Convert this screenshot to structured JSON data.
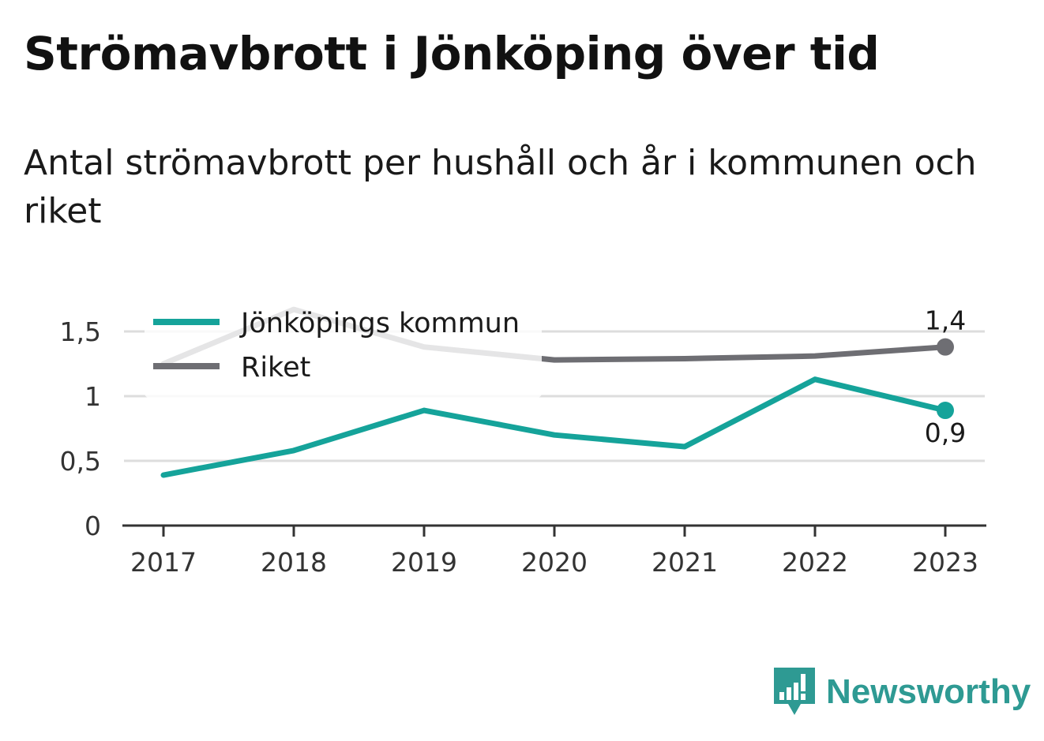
{
  "title": "Strömavbrott i Jönköping över tid",
  "subtitle": "Antal strömavbrott per hushåll och år i kommunen och riket",
  "brand": {
    "name": "Newsworthy",
    "color": "#2e9a93",
    "icon": "newsworthy-chart-bubble-icon"
  },
  "chart_data": {
    "type": "line",
    "x": [
      "2017",
      "2018",
      "2019",
      "2020",
      "2021",
      "2022",
      "2023"
    ],
    "ylim": [
      0,
      1.7
    ],
    "yticks": [
      0,
      0.5,
      1,
      1.5
    ],
    "ytick_labels": [
      "0",
      "0,5",
      "1",
      "1,5"
    ],
    "grid": true,
    "legend_placement": "top-left",
    "series": [
      {
        "name": "Jönköpings kommun",
        "color": "#15a39a",
        "values": [
          0.39,
          0.58,
          0.89,
          0.7,
          0.61,
          1.13,
          0.89
        ],
        "end_label": "0,9"
      },
      {
        "name": "Riket",
        "color": "#6e6e73",
        "values": [
          1.25,
          1.67,
          1.38,
          1.28,
          1.29,
          1.31,
          1.38
        ],
        "end_label": "1,4"
      }
    ]
  }
}
